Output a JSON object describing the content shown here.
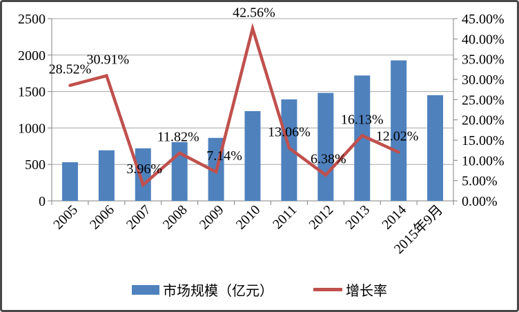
{
  "chart_data": {
    "type": "bar",
    "subtype": "combo-bar-line-dual-axis",
    "title": "",
    "categories": [
      "2005",
      "2006",
      "2007",
      "2008",
      "2009",
      "2010",
      "2011",
      "2012",
      "2013",
      "2014",
      "2015年9月"
    ],
    "series": [
      {
        "name": "市场规模（亿元）",
        "type": "bar",
        "axis": "left",
        "color": "#4F81BD",
        "values": [
          530,
          694,
          721,
          806,
          864,
          1231,
          1392,
          1481,
          1720,
          1927,
          1450
        ]
      },
      {
        "name": "增长率",
        "type": "line",
        "axis": "right",
        "color": "#C0504D",
        "values_pct": [
          28.52,
          30.91,
          3.96,
          11.82,
          7.14,
          42.56,
          13.06,
          6.38,
          16.13,
          12.02,
          null
        ],
        "point_labels": [
          "28.52%",
          "30.91%",
          "3.96%",
          "11.82%",
          "7.14%",
          "42.56%",
          "13.06%",
          "6.38%",
          "16.13%",
          "12.02%",
          ""
        ]
      }
    ],
    "left_axis": {
      "min": 0,
      "max": 2500,
      "step": 500,
      "tick_labels": [
        "0",
        "500",
        "1000",
        "1500",
        "2000",
        "2500"
      ]
    },
    "right_axis": {
      "min": 0,
      "max": 45,
      "step": 5,
      "tick_labels": [
        "0.00%",
        "5.00%",
        "10.00%",
        "15.00%",
        "20.00%",
        "25.00%",
        "30.00%",
        "35.00%",
        "40.00%",
        "45.00%"
      ]
    },
    "grid": true,
    "legend_position": "bottom",
    "label_dx": [
      0,
      2,
      2,
      -2,
      12,
      2,
      0,
      4,
      0,
      -2,
      0
    ]
  },
  "legend": {
    "bar_label": "市场规模（亿元）",
    "line_label": "增长率"
  },
  "colors": {
    "bar": "#4F81BD",
    "line": "#C0504D",
    "grid": "#A6A6A6",
    "axis": "#808080",
    "text": "#000000",
    "frame_border": "#484848"
  }
}
